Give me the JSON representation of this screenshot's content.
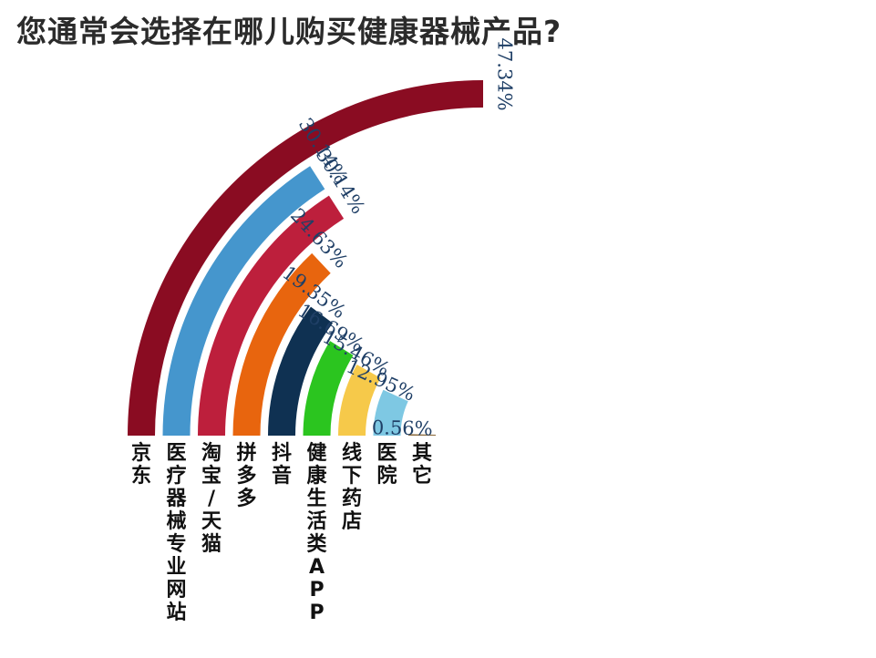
{
  "chart_data": {
    "type": "radial-bar",
    "title": "您通常会选择在哪儿购买健康器械产品?",
    "value_suffix": "%",
    "categories": [
      "京东",
      "医疗器械专业网站",
      "淘宝/天猫",
      "拼多多",
      "抖音",
      "健康生活类APP",
      "线下药店",
      "医院",
      "其它"
    ],
    "values": [
      47.34,
      30.14,
      30.14,
      24.63,
      19.35,
      16.69,
      15.46,
      12.95,
      0.56
    ],
    "value_labels": [
      "47.34%",
      "30.14%",
      "30.14%",
      "24.63%",
      "19.35%",
      "16.69%",
      "15.46%",
      "12.95%",
      "0.56%"
    ],
    "colors": [
      "#8a0c22",
      "#4596cd",
      "#bd1f3c",
      "#e8650e",
      "#0f3152",
      "#2bc51f",
      "#f6c94a",
      "#7ec8e3",
      "#8a6a3c"
    ],
    "value_max": 47.34,
    "full_sweep_degrees": 90
  }
}
